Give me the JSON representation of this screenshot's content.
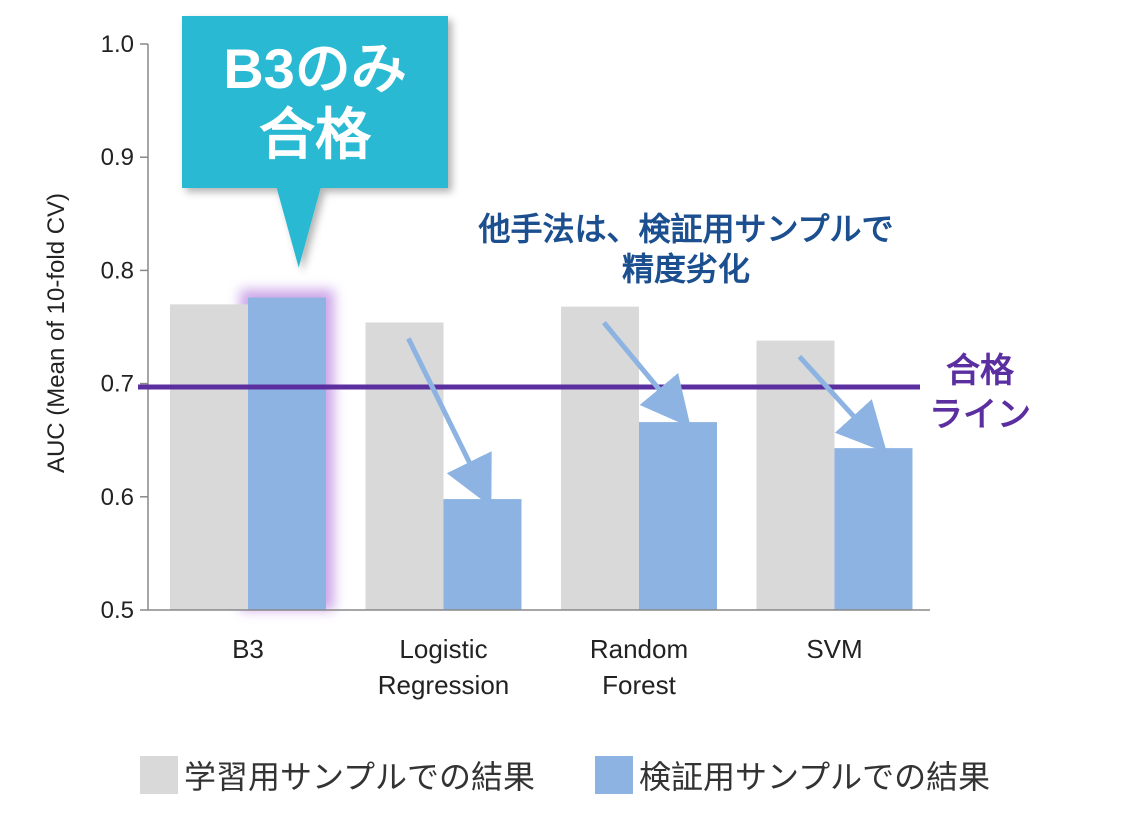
{
  "chart_data": {
    "type": "bar",
    "categories": [
      [
        "B3"
      ],
      [
        "Logistic",
        "Regression"
      ],
      [
        "Random",
        "Forest"
      ],
      [
        "SVM"
      ]
    ],
    "series": [
      {
        "name": "学習用サンプルでの結果",
        "values": [
          0.77,
          0.754,
          0.768,
          0.738
        ],
        "color": "#d9d9d9"
      },
      {
        "name": "検証用サンプルでの結果",
        "values": [
          0.776,
          0.598,
          0.666,
          0.643
        ],
        "color": "#8db3e2"
      }
    ],
    "ylabel": "AUC (Mean of 10-fold CV)",
    "ylim": [
      0.5,
      1.0
    ],
    "yticks": [
      "0.5",
      "0.6",
      "0.7",
      "0.8",
      "0.9",
      "1.0"
    ],
    "threshold": {
      "value": 0.697,
      "label": [
        "合格",
        "ライン"
      ],
      "color": "#5b2fa0"
    },
    "callout": {
      "lines": [
        "B3のみ",
        "合格"
      ],
      "color": "#29b9d2",
      "target": "B3"
    },
    "annotation": {
      "lines": [
        "他手法は、検証用サンプルで",
        "精度劣化"
      ],
      "color": "#1b4f8f"
    },
    "highlight_category": "B3",
    "legend_position": "bottom",
    "grid": false
  }
}
